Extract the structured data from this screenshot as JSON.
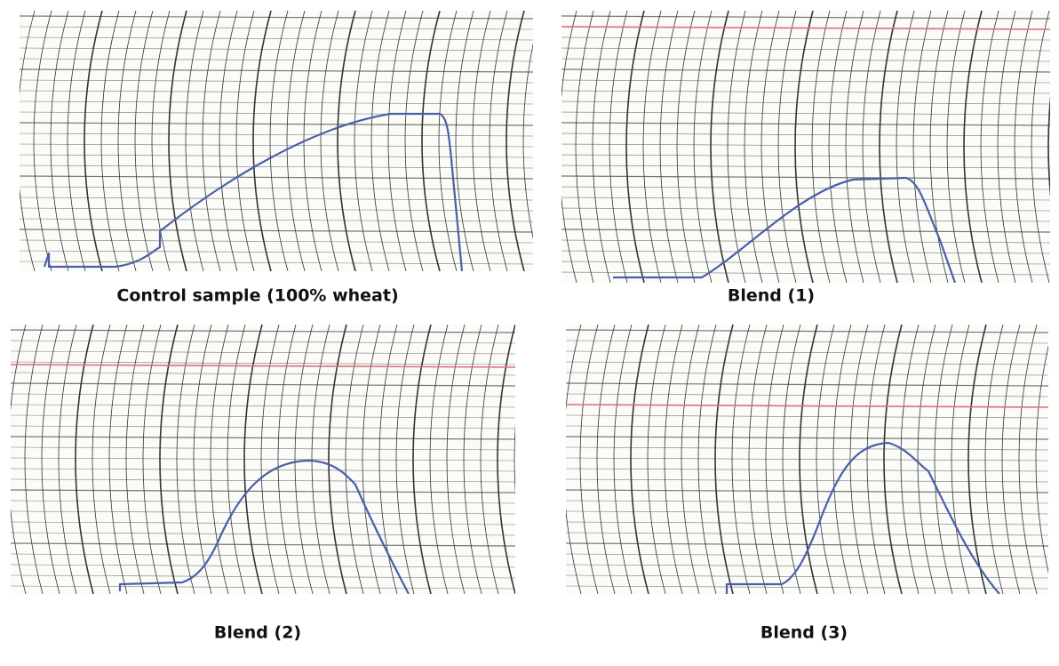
{
  "panels": [
    {
      "caption": "Control sample (100% wheat)"
    },
    {
      "caption": "Blend (1)"
    },
    {
      "caption": "Blend (2)"
    },
    {
      "caption": "Blend (3)"
    }
  ]
}
